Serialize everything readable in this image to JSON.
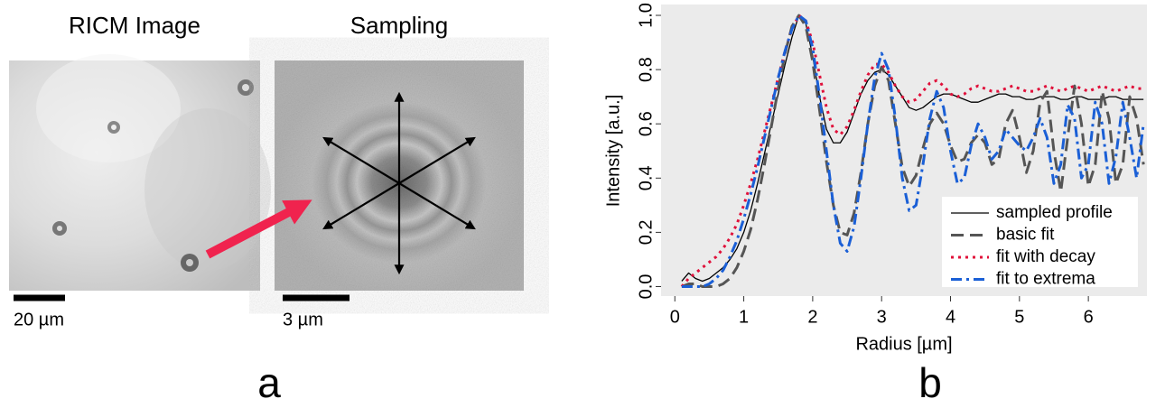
{
  "panel_a": {
    "left_title": "RICM Image",
    "right_title": "Sampling",
    "left_scale": "20 µm",
    "right_scale": "3 µm",
    "label": "a"
  },
  "chart_data": {
    "type": "line",
    "label": "b",
    "xlabel": "Radius [µm]",
    "ylabel": "Intensity [a.u.]",
    "xlim": [
      -0.2,
      6.85
    ],
    "ylim": [
      -0.035,
      1.04
    ],
    "xticks": [
      0,
      1,
      2,
      3,
      4,
      5,
      6
    ],
    "yticks": [
      {
        "value": 0,
        "label": "0.0"
      },
      0.2,
      0.4,
      0.6,
      0.8,
      {
        "value": 1,
        "label": "1.0"
      }
    ],
    "background": "#ebebeb",
    "legend": "lower right",
    "x": [
      0.1,
      0.2,
      0.3,
      0.4,
      0.5,
      0.6,
      0.7,
      0.8,
      0.9,
      1.0,
      1.1,
      1.2,
      1.3,
      1.4,
      1.5,
      1.6,
      1.7,
      1.8,
      1.9,
      2.0,
      2.1,
      2.2,
      2.3,
      2.4,
      2.5,
      2.6,
      2.7,
      2.8,
      2.9,
      3.0,
      3.1,
      3.2,
      3.3,
      3.4,
      3.5,
      3.6,
      3.7,
      3.8,
      3.9,
      4.0,
      4.1,
      4.2,
      4.3,
      4.4,
      4.5,
      4.6,
      4.7,
      4.8,
      4.9,
      5.0,
      5.1,
      5.2,
      5.3,
      5.4,
      5.5,
      5.6,
      5.7,
      5.8,
      5.9,
      6.0,
      6.1,
      6.2,
      6.3,
      6.4,
      6.5,
      6.6,
      6.7,
      6.8
    ],
    "series": [
      {
        "name": "sampled profile",
        "color": "#000000",
        "dash": "solid",
        "width": 1.3,
        "values": [
          0.02,
          0.05,
          0.03,
          0.02,
          0.03,
          0.05,
          0.07,
          0.1,
          0.14,
          0.2,
          0.28,
          0.38,
          0.49,
          0.6,
          0.71,
          0.82,
          0.92,
          1.0,
          0.97,
          0.85,
          0.7,
          0.58,
          0.53,
          0.53,
          0.57,
          0.64,
          0.71,
          0.76,
          0.79,
          0.8,
          0.78,
          0.74,
          0.7,
          0.66,
          0.65,
          0.66,
          0.68,
          0.7,
          0.71,
          0.71,
          0.7,
          0.69,
          0.68,
          0.68,
          0.69,
          0.7,
          0.71,
          0.71,
          0.7,
          0.7,
          0.69,
          0.69,
          0.7,
          0.7,
          0.7,
          0.69,
          0.69,
          0.7,
          0.7,
          0.69,
          0.69,
          0.69,
          0.7,
          0.7,
          0.69,
          0.69,
          0.69,
          0.69
        ]
      },
      {
        "name": "basic fit",
        "color": "#555555",
        "dash": "dashed",
        "width": 3,
        "values": [
          0.0,
          0.01,
          0.01,
          0.0,
          0.0,
          0.0,
          0.01,
          0.03,
          0.07,
          0.13,
          0.21,
          0.32,
          0.45,
          0.59,
          0.73,
          0.86,
          0.96,
          1.0,
          0.96,
          0.83,
          0.65,
          0.46,
          0.3,
          0.2,
          0.19,
          0.27,
          0.42,
          0.6,
          0.74,
          0.81,
          0.76,
          0.6,
          0.44,
          0.37,
          0.41,
          0.51,
          0.6,
          0.64,
          0.6,
          0.52,
          0.46,
          0.47,
          0.53,
          0.56,
          0.53,
          0.45,
          0.47,
          0.6,
          0.65,
          0.55,
          0.42,
          0.5,
          0.68,
          0.72,
          0.5,
          0.35,
          0.55,
          0.74,
          0.6,
          0.37,
          0.45,
          0.72,
          0.62,
          0.38,
          0.45,
          0.7,
          0.62,
          0.45
        ]
      },
      {
        "name": "fit with decay",
        "color": "#e0103a",
        "dash": "dotted",
        "width": 3,
        "values": [
          0.0,
          0.03,
          0.05,
          0.07,
          0.09,
          0.11,
          0.14,
          0.18,
          0.23,
          0.3,
          0.38,
          0.47,
          0.57,
          0.67,
          0.77,
          0.87,
          0.95,
          1.0,
          0.98,
          0.9,
          0.78,
          0.66,
          0.58,
          0.56,
          0.59,
          0.65,
          0.72,
          0.78,
          0.82,
          0.82,
          0.79,
          0.74,
          0.7,
          0.68,
          0.69,
          0.72,
          0.75,
          0.76,
          0.74,
          0.71,
          0.7,
          0.71,
          0.73,
          0.74,
          0.73,
          0.72,
          0.72,
          0.73,
          0.74,
          0.73,
          0.72,
          0.72,
          0.73,
          0.74,
          0.73,
          0.72,
          0.73,
          0.74,
          0.73,
          0.72,
          0.73,
          0.74,
          0.73,
          0.72,
          0.73,
          0.74,
          0.73,
          0.73
        ]
      },
      {
        "name": "fit to extrema",
        "color": "#1a5fd6",
        "dash": "dashdot",
        "width": 3,
        "values": [
          0.0,
          0.0,
          0.0,
          0.0,
          0.01,
          0.03,
          0.06,
          0.11,
          0.17,
          0.25,
          0.34,
          0.44,
          0.55,
          0.66,
          0.77,
          0.87,
          0.95,
          1.0,
          0.98,
          0.88,
          0.7,
          0.5,
          0.3,
          0.16,
          0.13,
          0.22,
          0.4,
          0.6,
          0.77,
          0.86,
          0.8,
          0.62,
          0.4,
          0.28,
          0.3,
          0.45,
          0.62,
          0.72,
          0.66,
          0.5,
          0.38,
          0.4,
          0.52,
          0.6,
          0.55,
          0.47,
          0.5,
          0.58,
          0.55,
          0.52,
          0.5,
          0.55,
          0.62,
          0.55,
          0.38,
          0.45,
          0.67,
          0.62,
          0.4,
          0.45,
          0.68,
          0.6,
          0.38,
          0.48,
          0.68,
          0.55,
          0.4,
          0.6
        ]
      }
    ]
  }
}
